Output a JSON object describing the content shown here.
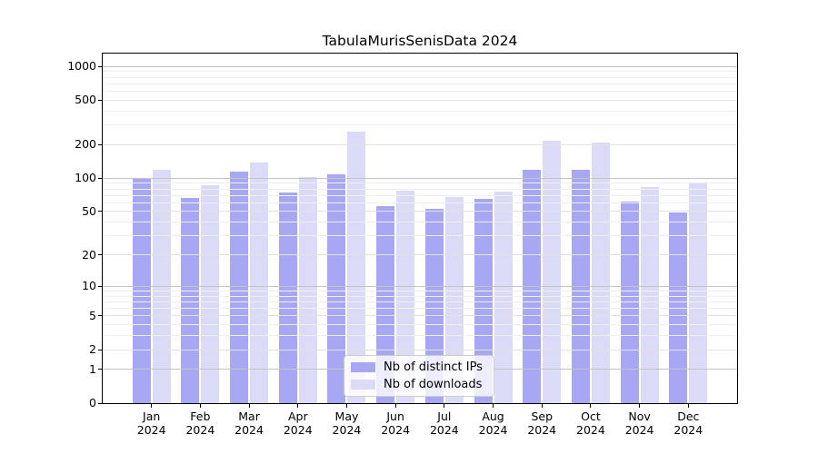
{
  "chart_data": {
    "type": "bar",
    "title": "TabulaMurisSenisData 2024",
    "categories": [
      "Jan",
      "Feb",
      "Mar",
      "Apr",
      "May",
      "Jun",
      "Jul",
      "Aug",
      "Sep",
      "Oct",
      "Nov",
      "Dec"
    ],
    "category_year": "2024",
    "series": [
      {
        "name": "Nb of distinct IPs",
        "slug": "distinct-ips",
        "color": "#a7a7f3",
        "values": [
          100,
          66,
          115,
          74,
          108,
          56,
          53,
          65,
          119,
          119,
          61,
          49
        ]
      },
      {
        "name": "Nb of downloads",
        "slug": "downloads",
        "color": "#dbdbf8",
        "values": [
          119,
          86,
          137,
          103,
          261,
          77,
          67,
          76,
          218,
          210,
          83,
          90
        ]
      }
    ],
    "yscale": "log1p",
    "ylim": [
      0,
      1300
    ],
    "yticks": [
      0,
      1,
      2,
      5,
      10,
      20,
      50,
      100,
      200,
      500,
      1000
    ],
    "grid": {
      "on": true,
      "major": [
        1,
        10,
        100,
        1000
      ],
      "mid": [
        2,
        5,
        20,
        50,
        200,
        500
      ],
      "minor": [
        3,
        4,
        6,
        7,
        8,
        9,
        30,
        40,
        60,
        70,
        80,
        90,
        300,
        400,
        600,
        700,
        800,
        900
      ]
    },
    "legend_position": "lower center",
    "colors": {
      "grid_major": "#c4c4c4",
      "grid_mid": "#e2e2e2",
      "grid_minor": "#efefef",
      "spine": "#000000",
      "background": "#ffffff"
    }
  }
}
